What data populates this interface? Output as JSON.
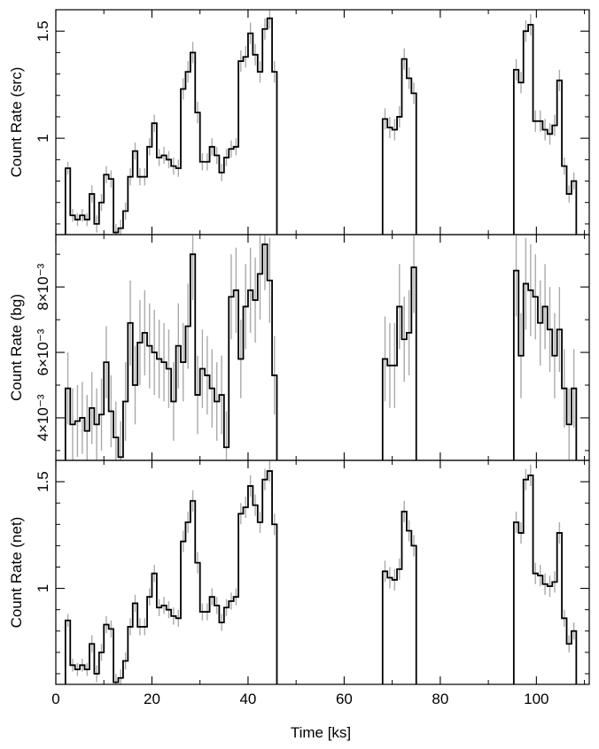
{
  "chart_data": {
    "type": "line",
    "xlabel": "Time [ks]",
    "xlim": [
      0,
      111
    ],
    "x_ticks": [
      {
        "value": 0,
        "label": "0"
      },
      {
        "value": 20,
        "label": "20"
      },
      {
        "value": 40,
        "label": "40"
      },
      {
        "value": 60,
        "label": "60"
      },
      {
        "value": 80,
        "label": "80"
      },
      {
        "value": 100,
        "label": "100"
      }
    ],
    "colors": {
      "step": "#000000",
      "error": "#aaaaaa",
      "axes": "#000000"
    },
    "panels": [
      {
        "id": "src",
        "ylabel": "Count Rate (src)",
        "ylim": [
          0.55,
          1.6
        ],
        "y_ticks": [
          {
            "value": 1,
            "label": "1"
          },
          {
            "value": 1.5,
            "label": "1.5"
          }
        ],
        "minor_y_ticks": [
          0.6,
          0.7,
          0.8,
          0.9,
          1.1,
          1.2,
          1.3,
          1.4
        ],
        "segments": [
          {
            "x": [
              2.5,
              3.5,
              4.5,
              5.5,
              6.5,
              7.5,
              8.5,
              9.5,
              10.5,
              11.5,
              12.5,
              13.5,
              14.5,
              15.5,
              16.5,
              17.5,
              18.5,
              19.5,
              20.5,
              21.5,
              22.5,
              23.5,
              24.5,
              25.5,
              26.5,
              27.5,
              28.5,
              29.5,
              30.5,
              31.5,
              32.5,
              33.5,
              34.5,
              35.5,
              36.5,
              37.5,
              38.5,
              39.5,
              40.5,
              41.5,
              42.5,
              43.5,
              44.5,
              45.5
            ],
            "y": [
              0.86,
              0.64,
              0.62,
              0.64,
              0.62,
              0.74,
              0.6,
              0.7,
              0.83,
              0.81,
              0.56,
              0.58,
              0.66,
              0.82,
              0.94,
              0.82,
              0.82,
              0.96,
              1.07,
              0.91,
              0.92,
              0.9,
              0.87,
              0.86,
              1.23,
              1.31,
              1.4,
              1.12,
              0.89,
              0.89,
              0.96,
              0.92,
              0.84,
              0.91,
              0.95,
              0.96,
              1.36,
              1.38,
              1.49,
              1.39,
              1.31,
              1.51,
              1.56,
              1.31
            ],
            "err": [
              0.03,
              0.03,
              0.03,
              0.03,
              0.03,
              0.04,
              0.04,
              0.04,
              0.04,
              0.04,
              0.04,
              0.04,
              0.04,
              0.04,
              0.04,
              0.04,
              0.04,
              0.04,
              0.04,
              0.04,
              0.04,
              0.04,
              0.04,
              0.04,
              0.05,
              0.05,
              0.05,
              0.05,
              0.04,
              0.04,
              0.04,
              0.04,
              0.04,
              0.04,
              0.04,
              0.04,
              0.05,
              0.05,
              0.05,
              0.05,
              0.05,
              0.05,
              0.05,
              0.05
            ]
          },
          {
            "x": [
              68.5,
              69.5,
              70.5,
              71.5,
              72.5,
              73.5,
              74.5
            ],
            "y": [
              1.09,
              1.05,
              1.04,
              1.1,
              1.37,
              1.28,
              1.21
            ],
            "err": [
              0.05,
              0.05,
              0.05,
              0.05,
              0.05,
              0.05,
              0.05
            ]
          },
          {
            "x": [
              95.8,
              96.8,
              97.8,
              98.8,
              99.8,
              100.8,
              101.8,
              102.8,
              103.8,
              104.8,
              105.8,
              106.8,
              107.8
            ],
            "y": [
              1.32,
              1.26,
              1.5,
              1.53,
              1.08,
              1.08,
              1.04,
              1.02,
              1.06,
              1.27,
              0.87,
              0.74,
              0.8
            ],
            "err": [
              0.05,
              0.05,
              0.05,
              0.05,
              0.05,
              0.05,
              0.05,
              0.05,
              0.05,
              0.05,
              0.04,
              0.04,
              0.04
            ]
          }
        ]
      },
      {
        "id": "bg",
        "ylabel": "Count Rate (bg)",
        "ylim": [
          0.0027,
          0.0096
        ],
        "y_ticks": [
          {
            "value": 0.004,
            "label": "4×10⁻³"
          },
          {
            "value": 0.006,
            "label": "6×10⁻³"
          },
          {
            "value": 0.008,
            "label": "8×10⁻³"
          }
        ],
        "minor_y_ticks": [
          0.003,
          0.005,
          0.007,
          0.009
        ],
        "segments": [
          {
            "x": [
              2.5,
              3.5,
              4.5,
              5.5,
              6.5,
              7.5,
              8.5,
              9.5,
              10.5,
              11.5,
              12.5,
              13.5,
              14.5,
              15.5,
              16.5,
              17.5,
              18.5,
              19.5,
              20.5,
              21.5,
              22.5,
              23.5,
              24.5,
              25.5,
              26.5,
              27.5,
              28.5,
              29.5,
              30.5,
              31.5,
              32.5,
              33.5,
              34.5,
              35.5,
              36.5,
              37.5,
              38.5,
              39.5,
              40.5,
              41.5,
              42.5,
              43.5,
              44.5,
              45.5
            ],
            "y": [
              0.0049,
              0.0038,
              0.0039,
              0.004,
              0.0036,
              0.0043,
              0.0038,
              0.0041,
              0.0057,
              0.0042,
              0.0034,
              0.0028,
              0.0045,
              0.0069,
              0.005,
              0.0063,
              0.0066,
              0.0062,
              0.006,
              0.0058,
              0.0057,
              0.0055,
              0.0045,
              0.0062,
              0.0057,
              0.0068,
              0.009,
              0.0047,
              0.0055,
              0.0053,
              0.0049,
              0.0045,
              0.0047,
              0.0031,
              0.0077,
              0.0079,
              0.0058,
              0.0074,
              0.0079,
              0.0076,
              0.0084,
              0.0093,
              0.0082,
              0.0053
            ],
            "err": [
              0.0011,
              0.0011,
              0.0011,
              0.0011,
              0.0011,
              0.0011,
              0.0011,
              0.0011,
              0.0011,
              0.0011,
              0.0011,
              0.0011,
              0.0012,
              0.0013,
              0.0012,
              0.0013,
              0.0013,
              0.0013,
              0.0013,
              0.0012,
              0.0012,
              0.0012,
              0.0012,
              0.0013,
              0.0012,
              0.0013,
              0.0014,
              0.0012,
              0.0012,
              0.0012,
              0.0012,
              0.0012,
              0.0012,
              0.0011,
              0.0013,
              0.0013,
              0.0012,
              0.0013,
              0.0013,
              0.0013,
              0.0014,
              0.0014,
              0.0013,
              0.0012
            ]
          },
          {
            "x": [
              68.5,
              69.5,
              70.5,
              71.5,
              72.5,
              73.5,
              74.5
            ],
            "y": [
              0.0058,
              0.0056,
              0.0056,
              0.0074,
              0.0064,
              0.0066,
              0.0086
            ],
            "err": [
              0.0013,
              0.0013,
              0.0013,
              0.0013,
              0.0013,
              0.0013,
              0.0014
            ]
          },
          {
            "x": [
              95.8,
              96.8,
              97.8,
              98.8,
              99.8,
              100.8,
              101.8,
              102.8,
              103.8,
              104.8,
              105.8,
              106.8,
              107.8
            ],
            "y": [
              0.0085,
              0.0059,
              0.0081,
              0.0079,
              0.0077,
              0.0069,
              0.0074,
              0.0067,
              0.0059,
              0.0067,
              0.0049,
              0.0038,
              0.0049
            ],
            "err": [
              0.0014,
              0.0013,
              0.0014,
              0.0014,
              0.0013,
              0.0013,
              0.0013,
              0.0013,
              0.0013,
              0.0013,
              0.0012,
              0.0011,
              0.0012
            ]
          }
        ]
      },
      {
        "id": "net",
        "ylabel": "Count Rate (net)",
        "ylim": [
          0.55,
          1.6
        ],
        "y_ticks": [
          {
            "value": 1,
            "label": "1"
          },
          {
            "value": 1.5,
            "label": "1.5"
          }
        ],
        "minor_y_ticks": [
          0.6,
          0.7,
          0.8,
          0.9,
          1.1,
          1.2,
          1.3,
          1.4
        ],
        "segments": [
          {
            "x": [
              2.5,
              3.5,
              4.5,
              5.5,
              6.5,
              7.5,
              8.5,
              9.5,
              10.5,
              11.5,
              12.5,
              13.5,
              14.5,
              15.5,
              16.5,
              17.5,
              18.5,
              19.5,
              20.5,
              21.5,
              22.5,
              23.5,
              24.5,
              25.5,
              26.5,
              27.5,
              28.5,
              29.5,
              30.5,
              31.5,
              32.5,
              33.5,
              34.5,
              35.5,
              36.5,
              37.5,
              38.5,
              39.5,
              40.5,
              41.5,
              42.5,
              43.5,
              44.5,
              45.5
            ],
            "y": [
              0.85,
              0.64,
              0.62,
              0.64,
              0.62,
              0.74,
              0.6,
              0.7,
              0.83,
              0.81,
              0.56,
              0.58,
              0.66,
              0.82,
              0.93,
              0.82,
              0.82,
              0.96,
              1.07,
              0.91,
              0.92,
              0.9,
              0.87,
              0.86,
              1.22,
              1.31,
              1.41,
              1.12,
              0.89,
              0.89,
              0.96,
              0.92,
              0.84,
              0.91,
              0.94,
              0.96,
              1.35,
              1.38,
              1.48,
              1.39,
              1.31,
              1.51,
              1.55,
              1.3
            ],
            "err": [
              0.03,
              0.03,
              0.03,
              0.03,
              0.03,
              0.04,
              0.04,
              0.04,
              0.04,
              0.04,
              0.04,
              0.04,
              0.04,
              0.04,
              0.04,
              0.04,
              0.04,
              0.04,
              0.04,
              0.04,
              0.04,
              0.04,
              0.04,
              0.04,
              0.05,
              0.05,
              0.05,
              0.05,
              0.04,
              0.04,
              0.04,
              0.04,
              0.04,
              0.04,
              0.04,
              0.04,
              0.05,
              0.05,
              0.05,
              0.05,
              0.05,
              0.05,
              0.05,
              0.05
            ]
          },
          {
            "x": [
              68.5,
              69.5,
              70.5,
              71.5,
              72.5,
              73.5,
              74.5
            ],
            "y": [
              1.08,
              1.05,
              1.04,
              1.09,
              1.36,
              1.27,
              1.2
            ],
            "err": [
              0.05,
              0.05,
              0.05,
              0.05,
              0.05,
              0.05,
              0.05
            ]
          },
          {
            "x": [
              95.8,
              96.8,
              97.8,
              98.8,
              99.8,
              100.8,
              101.8,
              102.8,
              103.8,
              104.8,
              105.8,
              106.8,
              107.8
            ],
            "y": [
              1.31,
              1.26,
              1.51,
              1.53,
              1.07,
              1.06,
              1.02,
              1.01,
              1.03,
              1.26,
              0.86,
              0.74,
              0.8
            ],
            "err": [
              0.05,
              0.05,
              0.05,
              0.05,
              0.05,
              0.05,
              0.05,
              0.05,
              0.05,
              0.05,
              0.04,
              0.04,
              0.04
            ]
          }
        ]
      }
    ]
  }
}
